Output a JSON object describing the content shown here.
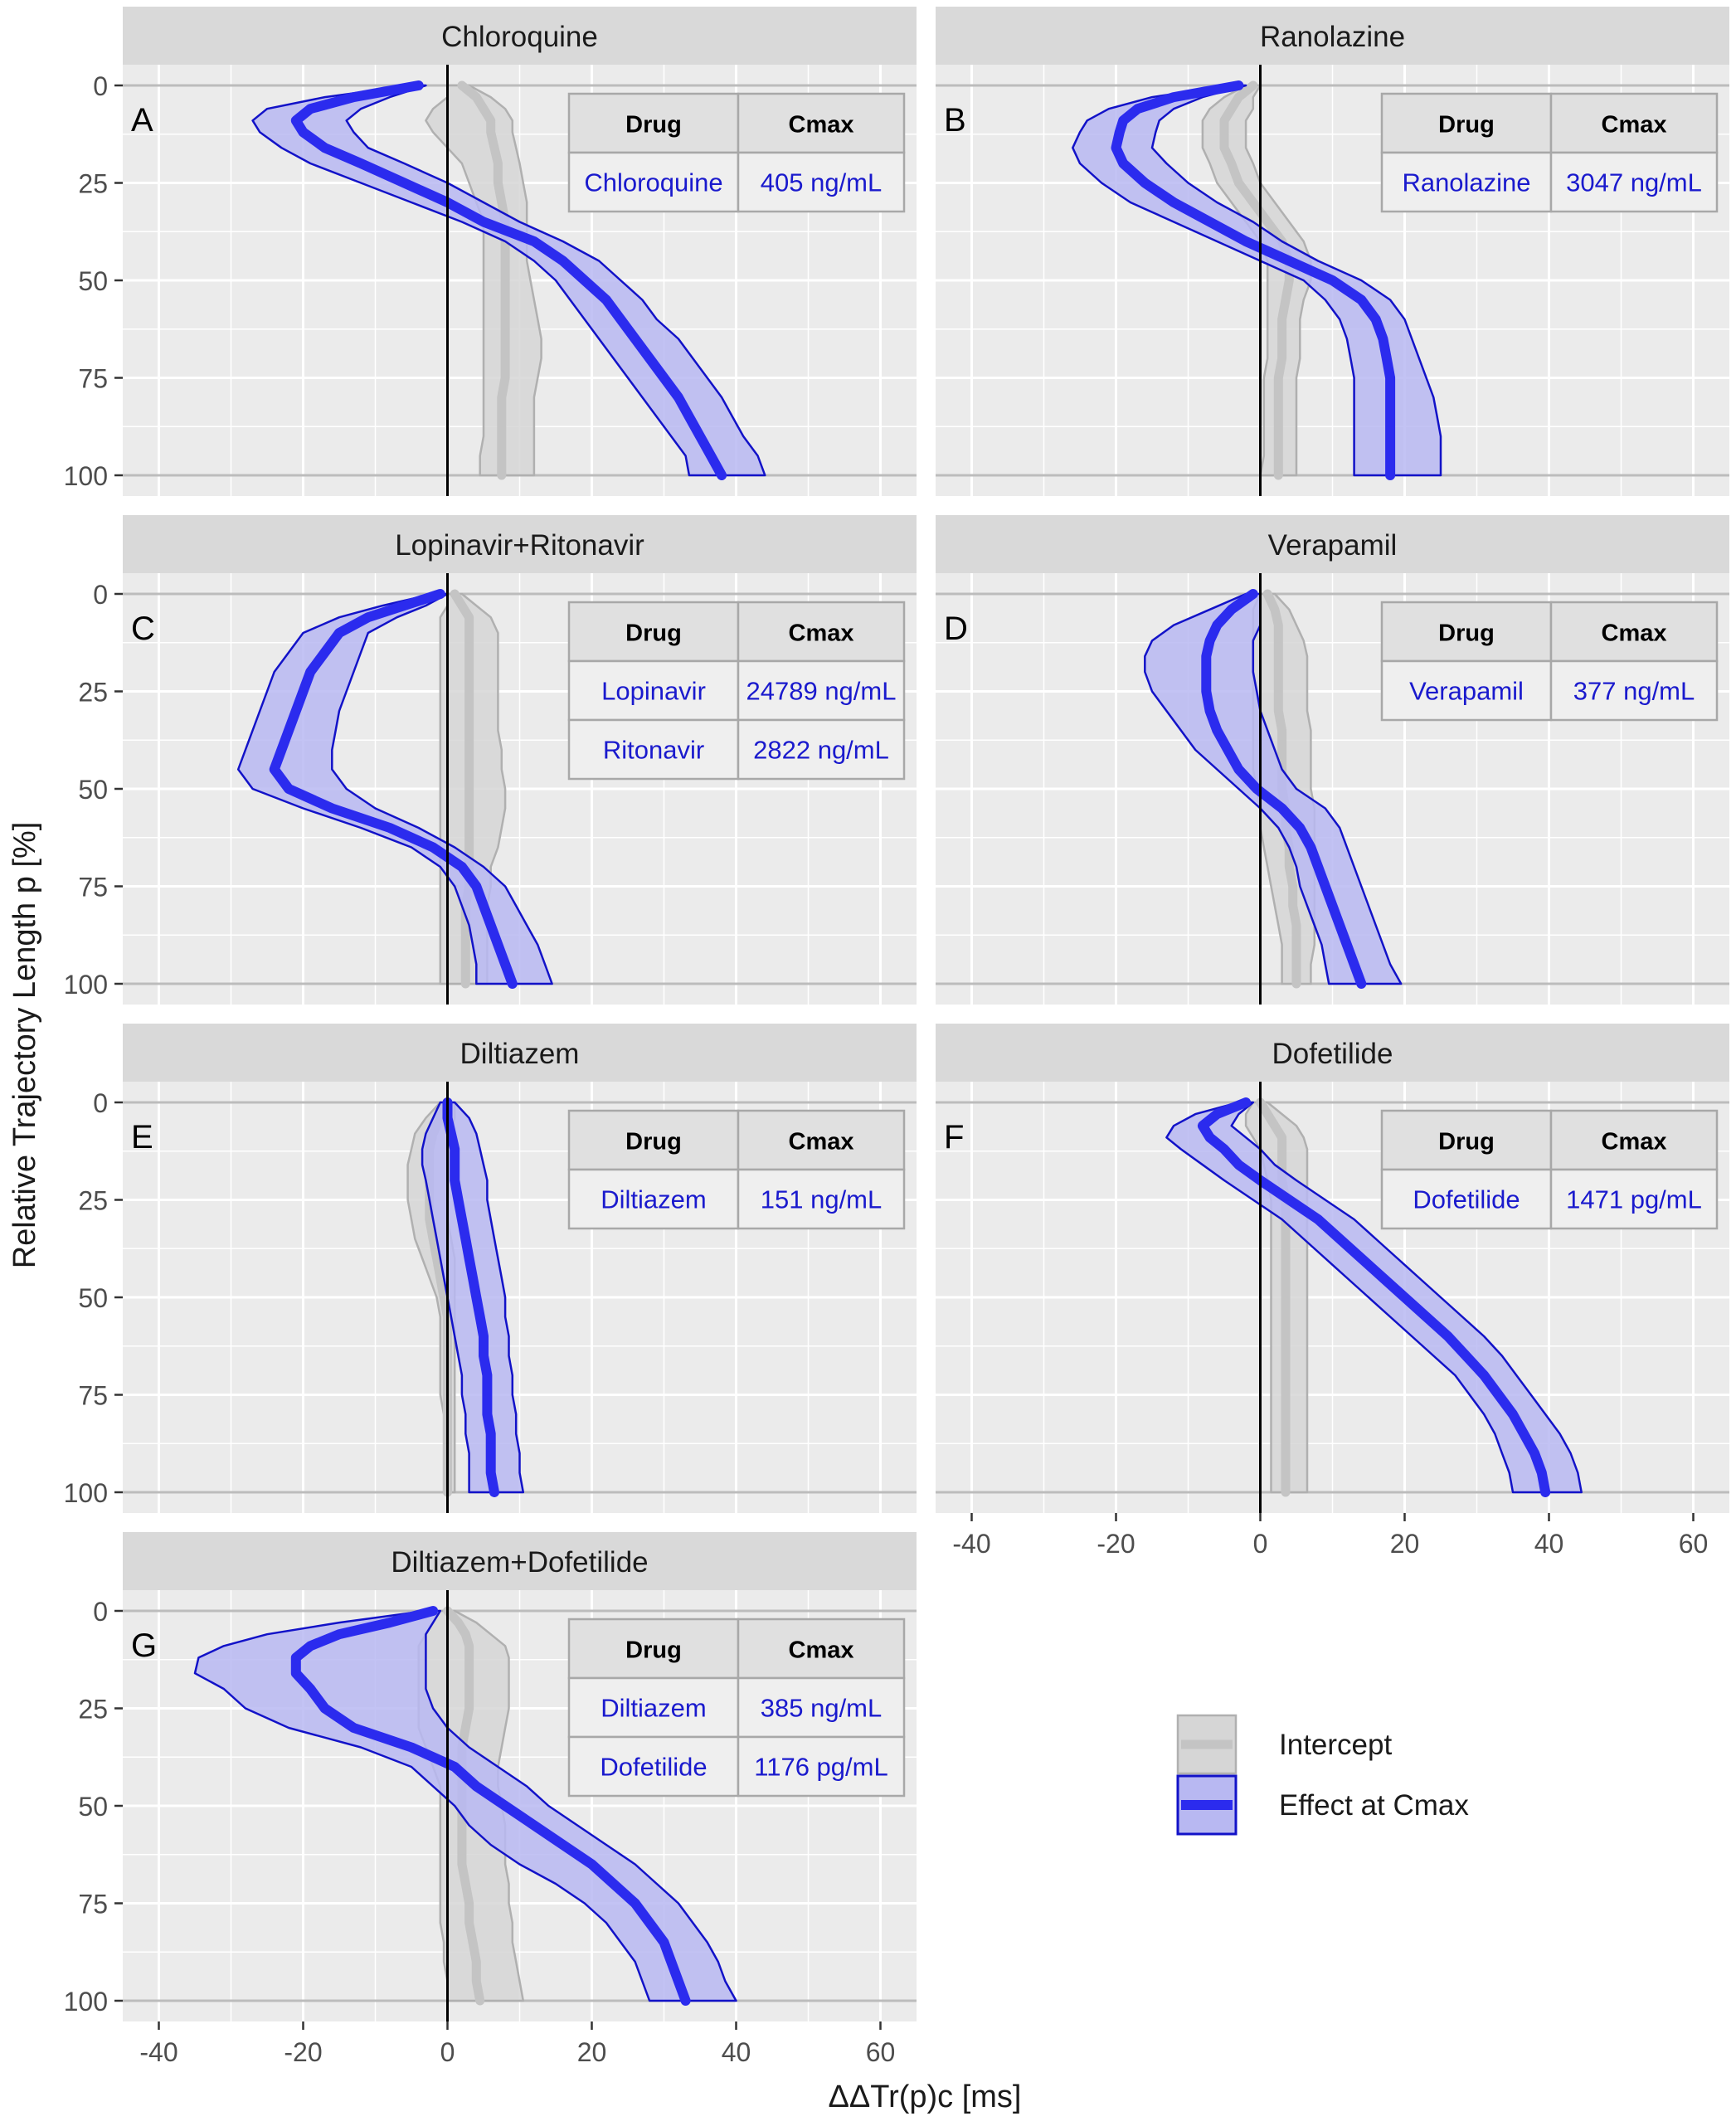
{
  "chart_data": {
    "type": "faceted_ribbon_line",
    "xlabel": "ΔΔTr(p)c [ms]",
    "ylabel": "Relative Trajectory Length p [%]",
    "xlim": [
      -45,
      65
    ],
    "ylim": [
      0,
      100
    ],
    "x_ticks": [
      "-40",
      "-20",
      "0",
      "20",
      "40",
      "60"
    ],
    "y_ticks": [
      "0",
      "25",
      "50",
      "75",
      "100"
    ],
    "table_headers": [
      "Drug",
      "Cmax"
    ],
    "legend": {
      "position": "bottom-right",
      "items": [
        {
          "key": "intercept",
          "label": "Intercept",
          "color": "#bdbdbd"
        },
        {
          "key": "effect",
          "label": "Effect at Cmax",
          "color": "#2b2bee"
        }
      ]
    },
    "colors": {
      "effect_line": "#2b2bee",
      "effect_fill": "#b8b8f2",
      "effect_edge": "#1212c8",
      "intercept_line": "#c4c4c4",
      "intercept_fill": "#d6d6d6",
      "intercept_edge": "#b0b0b0",
      "panel_bg": "#ebebeb",
      "strip_bg": "#d9d9d9",
      "table_text": "#1a1acd"
    },
    "panels": [
      {
        "id": "A",
        "title": "Chloroquine",
        "table": [
          [
            "Chloroquine",
            "405 ng/mL"
          ]
        ],
        "p": [
          0,
          3,
          6,
          9,
          12,
          16,
          20,
          25,
          30,
          35,
          40,
          45,
          50,
          55,
          60,
          65,
          70,
          75,
          80,
          85,
          90,
          95,
          100
        ],
        "effect_mean": [
          -4,
          -13,
          -19,
          -21,
          -20,
          -17,
          -12,
          -6,
          0,
          5,
          12,
          16,
          19,
          22,
          24,
          26,
          28,
          30,
          32,
          33.5,
          35,
          36.5,
          38
        ],
        "effect_lo": [
          -5,
          -17,
          -25,
          -27,
          -26,
          -23,
          -19,
          -12,
          -5,
          2,
          8,
          12,
          15,
          17,
          19,
          21,
          23,
          25,
          27,
          29,
          31,
          33,
          33.5
        ],
        "effect_hi": [
          -3,
          -8,
          -12,
          -14,
          -13,
          -11,
          -6,
          0,
          5,
          10,
          16,
          21,
          24,
          27,
          29,
          32,
          34,
          36,
          38,
          39.5,
          41,
          43,
          44
        ],
        "intercept_mean": [
          2,
          4,
          5,
          6,
          6,
          6.5,
          7,
          7,
          7.5,
          8,
          8,
          8,
          8,
          8,
          8,
          8,
          8,
          8,
          7.5,
          7.5,
          7.5,
          7.5,
          7.5
        ],
        "intercept_lo": [
          0,
          0,
          -2,
          -3,
          -2,
          0,
          2,
          3,
          4,
          5,
          5,
          5,
          5,
          5,
          5,
          5,
          5,
          5,
          5,
          5,
          5,
          4.5,
          4.5
        ],
        "intercept_hi": [
          3,
          6,
          8,
          9,
          9,
          9.5,
          10,
          10.5,
          11,
          11,
          11,
          11,
          11.5,
          12,
          12.5,
          13,
          13,
          12.5,
          12,
          12,
          12,
          12,
          12
        ]
      },
      {
        "id": "B",
        "title": "Ranolazine",
        "table": [
          [
            "Ranolazine",
            "3047 ng/mL"
          ]
        ],
        "p": [
          0,
          3,
          6,
          9,
          12,
          16,
          20,
          25,
          30,
          35,
          40,
          45,
          50,
          55,
          60,
          65,
          70,
          75,
          80,
          85,
          90,
          95,
          100
        ],
        "effect_mean": [
          -3,
          -12,
          -17,
          -19,
          -19.5,
          -20,
          -19,
          -16,
          -12,
          -7,
          -2,
          4,
          10,
          14,
          16,
          17,
          17.5,
          18,
          18,
          18,
          18,
          18,
          18
        ],
        "effect_lo": [
          -4,
          -15,
          -21,
          -24,
          -25,
          -26,
          -25,
          -22,
          -18,
          -12,
          -6,
          0,
          6,
          9,
          11,
          12,
          12.5,
          13,
          13,
          13,
          13,
          13,
          13
        ],
        "effect_hi": [
          -2,
          -8,
          -12,
          -14,
          -14.5,
          -15,
          -13,
          -10,
          -6,
          -1,
          3,
          8,
          14,
          18,
          20,
          21,
          22,
          23,
          24,
          24.5,
          25,
          25,
          25
        ],
        "intercept_mean": [
          -1,
          -3,
          -4,
          -5,
          -5,
          -5,
          -4,
          -3,
          -1,
          1,
          3,
          4,
          4,
          3.5,
          3,
          3,
          3,
          2.5,
          2.5,
          2.5,
          2.5,
          2.5,
          2.5
        ],
        "intercept_lo": [
          -2,
          -5,
          -7,
          -8,
          -8,
          -8,
          -7,
          -6,
          -4,
          -2,
          0,
          1,
          1,
          1,
          1,
          1,
          1,
          0.5,
          0.5,
          0.5,
          0.5,
          0.5,
          0
        ],
        "intercept_hi": [
          0,
          -1,
          -1,
          -2,
          -2,
          -2,
          -1,
          0,
          2,
          4,
          6,
          7,
          7,
          6,
          5.5,
          5.5,
          5.5,
          5,
          5,
          5,
          5,
          5,
          5
        ]
      },
      {
        "id": "C",
        "title": "Lopinavir+Ritonavir",
        "table": [
          [
            "Lopinavir",
            "24789 ng/mL"
          ],
          [
            "Ritonavir",
            "2822 ng/mL"
          ]
        ],
        "p": [
          0,
          3,
          6,
          10,
          15,
          20,
          25,
          30,
          35,
          40,
          45,
          50,
          55,
          60,
          65,
          70,
          75,
          80,
          85,
          90,
          95,
          100
        ],
        "effect_mean": [
          -1,
          -6,
          -11,
          -15,
          -17,
          -19,
          -20,
          -21,
          -22,
          -23,
          -24,
          -22,
          -16,
          -8,
          -2,
          2,
          4,
          5,
          6,
          7,
          8,
          9
        ],
        "effect_lo": [
          -2,
          -9,
          -15,
          -20,
          -22,
          -24,
          -25,
          -26,
          -27,
          -28,
          -29,
          -27,
          -20,
          -12,
          -5,
          -1,
          1,
          2,
          3,
          3.5,
          4,
          4
        ],
        "effect_hi": [
          0,
          -3,
          -7,
          -11,
          -12,
          -13,
          -14,
          -15,
          -15.5,
          -16,
          -16,
          -14,
          -10,
          -4,
          1,
          5,
          8,
          9.5,
          11,
          12.5,
          13.5,
          14.5
        ],
        "intercept_mean": [
          1,
          2,
          3,
          3,
          3,
          3,
          3,
          3,
          3,
          3,
          3,
          3,
          3,
          3,
          3,
          3,
          3,
          2.5,
          2.5,
          2.5,
          2.5,
          2.5
        ],
        "intercept_lo": [
          0,
          0,
          -1,
          -1,
          -1,
          -1,
          -1,
          -1,
          -1,
          -1,
          -1,
          -1,
          -1,
          -1,
          -1,
          -1,
          -1,
          -1,
          -1,
          -1,
          -1,
          -1
        ],
        "intercept_hi": [
          2,
          4,
          6,
          7,
          7,
          7,
          7,
          7,
          7,
          7.5,
          7.5,
          8,
          8,
          7.5,
          7,
          6,
          6,
          5.5,
          5.5,
          5.5,
          5.5,
          5.5
        ]
      },
      {
        "id": "D",
        "title": "Verapamil",
        "table": [
          [
            "Verapamil",
            "377 ng/mL"
          ]
        ],
        "p": [
          0,
          4,
          8,
          12,
          16,
          20,
          25,
          30,
          35,
          40,
          45,
          50,
          55,
          60,
          65,
          70,
          75,
          80,
          85,
          90,
          95,
          100
        ],
        "effect_mean": [
          -1,
          -4,
          -6,
          -7,
          -7.5,
          -7.5,
          -7.5,
          -7,
          -6,
          -4.5,
          -3,
          -0.5,
          3,
          5.5,
          7,
          8,
          9,
          10,
          11,
          12,
          13,
          14
        ],
        "effect_lo": [
          -2,
          -7,
          -12,
          -15,
          -16,
          -16,
          -15,
          -13,
          -11,
          -9,
          -6,
          -3,
          0,
          2.5,
          4,
          5,
          5.5,
          6.5,
          7.5,
          8.5,
          9,
          9.5
        ],
        "effect_hi": [
          0,
          0,
          0,
          -1,
          -1,
          -1,
          -0.5,
          0,
          1,
          2,
          3,
          5,
          9,
          11,
          12,
          13,
          14,
          15,
          16,
          17,
          18,
          19.5
        ],
        "intercept_mean": [
          1,
          2,
          2.5,
          2.5,
          2.5,
          2.5,
          2.5,
          2.5,
          3,
          3,
          3,
          3,
          3.5,
          3.5,
          4,
          4,
          4.5,
          4.5,
          5,
          5,
          5,
          5
        ],
        "intercept_lo": [
          0,
          -1,
          -1,
          -1,
          -1,
          -1,
          -1,
          -1,
          -1,
          -1,
          -1,
          -0.5,
          0,
          0,
          0.5,
          1,
          1.5,
          2,
          2.5,
          3,
          3,
          3
        ],
        "intercept_hi": [
          2,
          4,
          5,
          6,
          6.5,
          6.5,
          6.5,
          6.5,
          7,
          7,
          7,
          7,
          7.5,
          7.5,
          7.5,
          7.5,
          7.5,
          7.5,
          7.5,
          7.5,
          7,
          7
        ]
      },
      {
        "id": "E",
        "title": "Diltiazem",
        "table": [
          [
            "Diltiazem",
            "151 ng/mL"
          ]
        ],
        "p": [
          0,
          4,
          8,
          12,
          16,
          20,
          25,
          30,
          35,
          40,
          45,
          50,
          55,
          60,
          65,
          70,
          75,
          80,
          85,
          90,
          95,
          100
        ],
        "effect_mean": [
          0,
          0,
          0.5,
          1,
          1,
          1,
          1.5,
          2,
          2.5,
          3,
          3.5,
          4,
          4.5,
          5,
          5,
          5.5,
          5.5,
          5.5,
          6,
          6,
          6,
          6.5
        ],
        "effect_lo": [
          -1,
          -2,
          -3,
          -3.5,
          -3.5,
          -3,
          -2.5,
          -2,
          -1.5,
          -1,
          -0.5,
          0,
          0.5,
          1,
          1.5,
          2,
          2,
          2.5,
          2.5,
          3,
          3,
          3
        ],
        "effect_hi": [
          1,
          3,
          4,
          4.5,
          5,
          5.5,
          5.5,
          6,
          6.5,
          7,
          7.5,
          8,
          8,
          8.5,
          8.5,
          9,
          9,
          9.5,
          9.5,
          10,
          10,
          10.5
        ],
        "intercept_mean": [
          0,
          -1,
          -2,
          -2.5,
          -2.5,
          -2.5,
          -2.5,
          -2.5,
          -2,
          -1.5,
          -1,
          -0.5,
          0,
          0,
          0,
          0,
          0,
          0,
          0,
          0,
          0,
          0
        ],
        "intercept_lo": [
          -1,
          -3,
          -4.5,
          -5,
          -5.5,
          -5.5,
          -5.5,
          -5,
          -4.5,
          -3.5,
          -2.5,
          -1.5,
          -1,
          -1,
          -1,
          -1,
          -1,
          -0.5,
          -0.5,
          -0.5,
          -0.5,
          -0.5
        ],
        "intercept_hi": [
          1,
          1,
          0.5,
          0,
          0,
          0,
          0,
          0,
          0.5,
          1,
          1,
          1,
          1,
          1,
          1,
          1,
          1,
          1,
          1,
          1,
          1,
          1
        ]
      },
      {
        "id": "F",
        "title": "Dofetilide",
        "table": [
          [
            "Dofetilide",
            "1471 pg/mL"
          ]
        ],
        "p": [
          0,
          3,
          6,
          9,
          12,
          16,
          20,
          25,
          30,
          35,
          40,
          45,
          50,
          55,
          60,
          65,
          70,
          75,
          80,
          85,
          90,
          95,
          100
        ],
        "effect_mean": [
          -2,
          -6,
          -8,
          -7,
          -5,
          -3,
          0,
          4,
          8,
          11,
          14,
          17,
          20,
          23,
          26,
          28.5,
          31,
          33,
          35,
          36.5,
          38,
          39,
          39.5
        ],
        "effect_lo": [
          -3,
          -9,
          -12,
          -13,
          -11,
          -8,
          -5,
          -1,
          3,
          6,
          9,
          12,
          15,
          18,
          21,
          24,
          27,
          29,
          31,
          32.5,
          33.5,
          34.5,
          35
        ],
        "effect_hi": [
          -1,
          -3,
          -4,
          -2,
          0,
          2,
          5,
          9,
          13,
          16,
          19,
          22,
          25,
          28,
          31,
          33.5,
          35.5,
          37.5,
          39.5,
          41.5,
          43,
          44,
          44.5
        ],
        "intercept_mean": [
          0,
          1,
          2,
          3,
          3,
          3,
          3,
          3.5,
          3.5,
          3.5,
          3.5,
          3.5,
          3.5,
          3.5,
          3.5,
          3.5,
          3.5,
          3.5,
          3.5,
          3.5,
          3.5,
          3.5,
          3.5
        ],
        "intercept_lo": [
          -1,
          -2,
          -2,
          -1,
          0,
          0.5,
          1,
          1.5,
          1.5,
          1.5,
          1.5,
          1.5,
          1.5,
          1.5,
          1.5,
          1.5,
          1.5,
          1.5,
          1.5,
          1.5,
          1.5,
          1.5,
          1.5
        ],
        "intercept_hi": [
          1,
          3,
          5,
          6,
          6.5,
          6.5,
          6.5,
          6.5,
          6.5,
          6.5,
          6.5,
          6.5,
          6.5,
          6.5,
          6.5,
          6.5,
          6.5,
          6.5,
          6.5,
          6.5,
          6.5,
          6.5,
          6.5
        ]
      },
      {
        "id": "G",
        "title": "Diltiazem+Dofetilide",
        "table": [
          [
            "Diltiazem",
            "385 ng/mL"
          ],
          [
            "Dofetilide",
            "1176 pg/mL"
          ]
        ],
        "p": [
          0,
          3,
          6,
          9,
          12,
          16,
          20,
          25,
          30,
          35,
          40,
          45,
          50,
          55,
          60,
          65,
          70,
          75,
          80,
          85,
          90,
          95,
          100
        ],
        "effect_mean": [
          -2,
          -8,
          -15,
          -19,
          -21,
          -21,
          -19,
          -17,
          -13,
          -5,
          1,
          4,
          8,
          12,
          16,
          20,
          23,
          26,
          28,
          30,
          31,
          32,
          33
        ],
        "effect_lo": [
          -3,
          -15,
          -25,
          -31,
          -34.5,
          -35,
          -31,
          -28,
          -22,
          -12,
          -5,
          -2,
          1,
          3,
          6,
          10,
          15,
          19,
          22,
          24,
          26,
          27,
          28
        ],
        "effect_hi": [
          -1,
          -2,
          -3,
          -3,
          -3,
          -3,
          -3,
          -2,
          0,
          3,
          7,
          11,
          14,
          18,
          22,
          26,
          29,
          32,
          34,
          36,
          37.5,
          38.5,
          40
        ],
        "intercept_mean": [
          0,
          1.5,
          2.5,
          3,
          3,
          3,
          3,
          3,
          2.5,
          2,
          2,
          2,
          2,
          2,
          2,
          2,
          2.5,
          3,
          3,
          3.5,
          4,
          4,
          4.5
        ],
        "intercept_lo": [
          -1,
          -2,
          -3,
          -4,
          -4,
          -4,
          -4,
          -4,
          -4,
          -3,
          -2,
          -1,
          -1,
          -1,
          -1,
          -1,
          -1,
          -1,
          -1,
          -0.5,
          -0.5,
          0,
          0
        ],
        "intercept_hi": [
          1,
          4,
          6,
          8,
          8.5,
          8.5,
          8.5,
          8.5,
          8,
          7.5,
          7,
          7,
          7.5,
          8,
          8,
          8,
          8.5,
          8.5,
          9,
          9,
          9.5,
          10,
          10.5
        ]
      }
    ]
  }
}
